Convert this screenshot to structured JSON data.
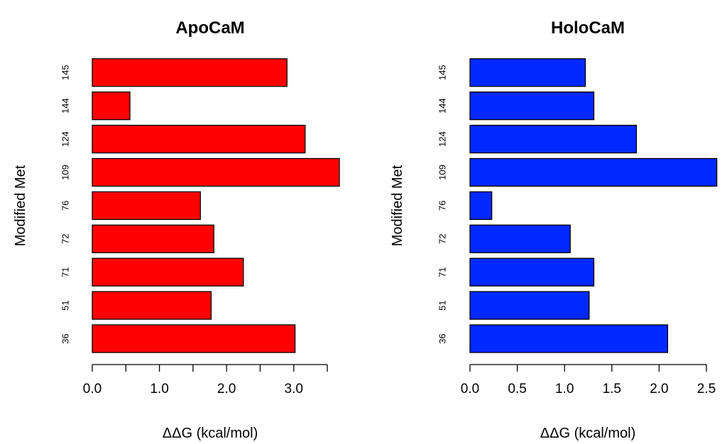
{
  "chart_data": [
    {
      "type": "bar",
      "orientation": "horizontal",
      "title": "ApoCaM",
      "xlabel": "ΔΔG (kcal/mol)",
      "ylabel": "Modified Met",
      "categories": [
        "36",
        "51",
        "71",
        "72",
        "76",
        "109",
        "124",
        "144",
        "145"
      ],
      "values": [
        3.02,
        1.77,
        2.25,
        1.81,
        1.61,
        3.68,
        3.17,
        0.56,
        2.9
      ],
      "xlim": [
        0,
        3.5
      ],
      "xticks": [
        0,
        0.5,
        1.0,
        1.5,
        2.0,
        2.5,
        3.0,
        3.5
      ],
      "xtick_labels": [
        "0.0",
        "",
        "1.0",
        "",
        "2.0",
        "",
        "3.0",
        ""
      ],
      "bar_color": "#FF0000",
      "grid": false
    },
    {
      "type": "bar",
      "orientation": "horizontal",
      "title": "HoloCaM",
      "xlabel": "ΔΔG (kcal/mol)",
      "ylabel": "Modified Met",
      "categories": [
        "36",
        "51",
        "71",
        "72",
        "76",
        "109",
        "124",
        "144",
        "145"
      ],
      "values": [
        2.09,
        1.26,
        1.31,
        1.06,
        0.23,
        2.61,
        1.76,
        1.31,
        1.22
      ],
      "xlim": [
        0,
        2.5
      ],
      "xticks": [
        0,
        0.5,
        1.0,
        1.5,
        2.0,
        2.5
      ],
      "xtick_labels": [
        "0.0",
        "0.5",
        "1.0",
        "1.5",
        "2.0",
        "2.5"
      ],
      "bar_color": "#0029FF",
      "grid": false
    }
  ]
}
